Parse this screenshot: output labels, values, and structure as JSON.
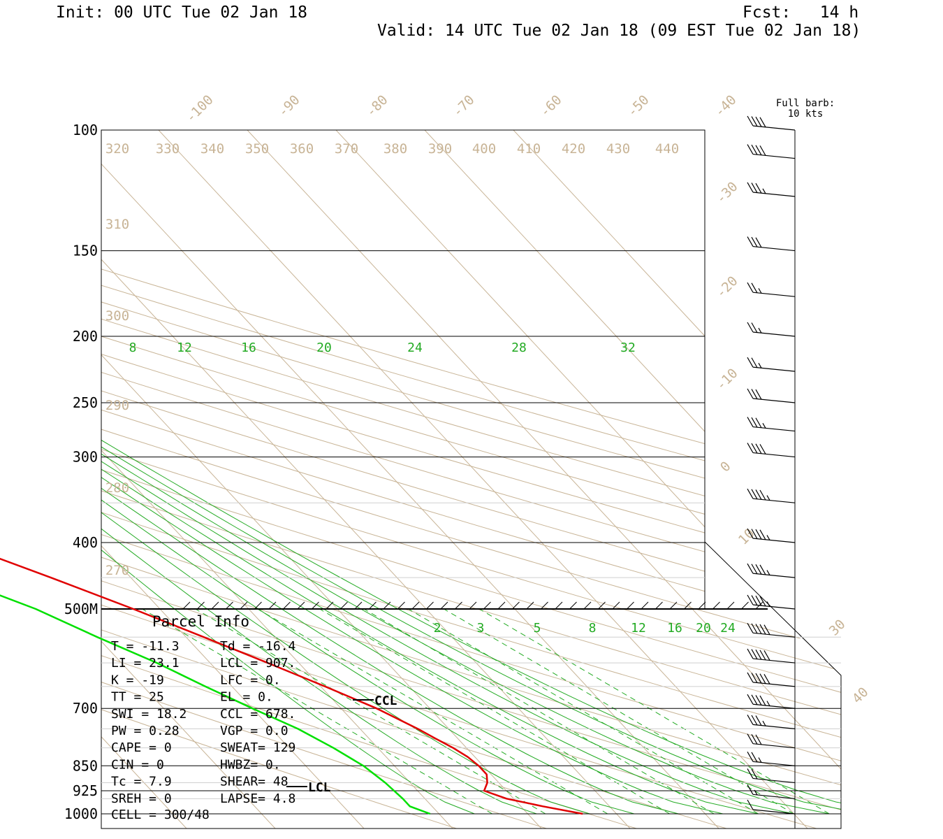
{
  "header": {
    "init": "Init: 00 UTC Tue 02 Jan 18",
    "fcst": "Fcst:   14 h",
    "valid": "Valid: 14 UTC Tue 02 Jan 18 (09 EST Tue 02 Jan 18)"
  },
  "barb_legend": {
    "line1": "Full barb:",
    "line2": "10 kts"
  },
  "colors": {
    "temperature": "#e00000",
    "dewpoint": "#00e000",
    "isotherm": "#c8b496",
    "theta": "#c8b496",
    "mixing_ratio": "#22aa22",
    "grid": "#000000"
  },
  "chart_data": {
    "type": "line",
    "chart_kind": "Skew-T log-P sounding",
    "y_axis": {
      "scale": "log-pressure",
      "ylim": [
        1000,
        100
      ]
    },
    "pressure_labels": [
      "100",
      "150",
      "200",
      "250",
      "300",
      "400",
      "500M",
      "700",
      "850",
      "925",
      "1000"
    ],
    "isotherm_labels": [
      "-100",
      "-90",
      "-80",
      "-70",
      "-60",
      "-50",
      "-40",
      "-30",
      "-20",
      "-10",
      "0",
      "10",
      "30",
      "40"
    ],
    "theta_labels": [
      "320",
      "330",
      "340",
      "350",
      "360",
      "370",
      "380",
      "390",
      "400",
      "410",
      "420",
      "430",
      "440",
      "310",
      "300",
      "290",
      "280",
      "270"
    ],
    "upper_mixing_ratio_labels": [
      "8",
      "12",
      "16",
      "20",
      "24",
      "28",
      "32"
    ],
    "lower_mixing_ratio_labels": [
      "2",
      "3",
      "5",
      "8",
      "12",
      "16",
      "20",
      "24"
    ],
    "series": [
      {
        "name": "Temperature",
        "pressure": [
          1000,
          975,
          950,
          925,
          900,
          875,
          850,
          825,
          800,
          775,
          750,
          700,
          650,
          600,
          550,
          500,
          450,
          400,
          375,
          350,
          300,
          250,
          200,
          175,
          150,
          125,
          110,
          100
        ],
        "temperature_c": [
          -3.8,
          -7.5,
          -10.8,
          -12.5,
          -11.3,
          -10.5,
          -10.5,
          -10.8,
          -11.5,
          -12.5,
          -13.5,
          -16.0,
          -19.5,
          -23.5,
          -28.0,
          -33.0,
          -39.0,
          -46.0,
          -49.5,
          -52.0,
          -54.0,
          -55.0,
          -57.5,
          -58.5,
          -59.0,
          -58.5,
          -58.0,
          -57.0
        ]
      },
      {
        "name": "Dewpoint",
        "pressure": [
          1000,
          975,
          950,
          900,
          850,
          800,
          750,
          700,
          650,
          600,
          550,
          500,
          450,
          400,
          350,
          300,
          250,
          220,
          200,
          175,
          150,
          125,
          100
        ],
        "dewpoint_c": [
          -21.0,
          -22.5,
          -22.5,
          -22.8,
          -23.5,
          -25.0,
          -27.0,
          -30.0,
          -33.0,
          -36.0,
          -40.0,
          -44.0,
          -50.0,
          -57.0,
          -64.0,
          -71.0,
          -79.0,
          -86.0,
          -86.0,
          -84.0,
          -80.0,
          -77.0,
          -78.0
        ]
      }
    ],
    "levels": [
      {
        "label": "CCL",
        "pressure": 678
      },
      {
        "label": "LCL",
        "pressure": 907
      }
    ],
    "wind_barbs": {
      "units": "kts",
      "pressure": [
        100,
        110,
        125,
        150,
        175,
        200,
        225,
        250,
        275,
        300,
        350,
        400,
        450,
        500,
        550,
        600,
        650,
        700,
        750,
        800,
        850,
        900,
        950,
        1000
      ],
      "speed_kts": [
        40,
        40,
        35,
        30,
        25,
        25,
        25,
        30,
        35,
        40,
        45,
        45,
        45,
        45,
        50,
        50,
        50,
        45,
        35,
        30,
        25,
        20,
        15,
        10
      ]
    }
  },
  "parcel_info": {
    "title": "Parcel Info",
    "rows": [
      {
        "l": "T  =    -11.3",
        "r": "Td = -16.4"
      },
      {
        "l": "LI =     23.1",
        "r": "LCL =  907."
      },
      {
        "l": "K  =      -19",
        "r": "LFC =    0."
      },
      {
        "l": "TT =       25",
        "r": "EL  =    0."
      },
      {
        "l": "SWI =    18.2",
        "r": "CCL =  678."
      },
      {
        "l": "PW =     0.28",
        "r": "VGP =   0.0"
      },
      {
        "l": "CAPE =      0",
        "r": "SWEAT=  129"
      },
      {
        "l": "CIN =       0",
        "r": "HWBZ=    0."
      },
      {
        "l": "Tc =      7.9",
        "r": "SHEAR=  48"
      },
      {
        "l": "SREH =      0",
        "r": "LAPSE=  4.8"
      }
    ],
    "cell": "CELL = 300/48"
  }
}
